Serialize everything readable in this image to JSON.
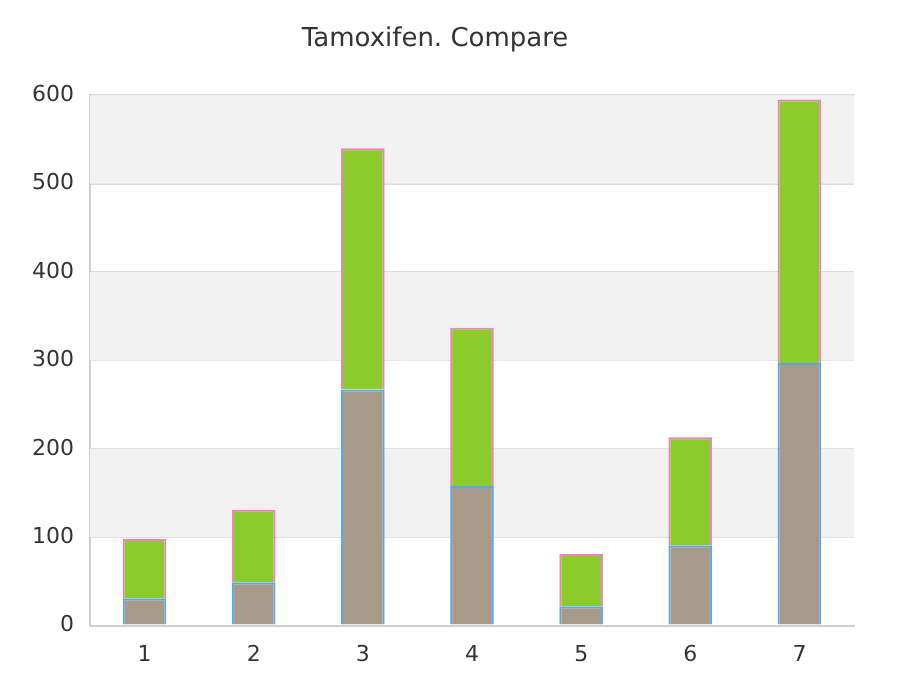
{
  "chart_data": {
    "type": "bar",
    "title": "Tamoxifen. Compare",
    "categories": [
      "1",
      "2",
      "3",
      "4",
      "5",
      "6",
      "7"
    ],
    "stacked": true,
    "series": [
      {
        "color": "#a89a88",
        "values": [
          31,
          49,
          267,
          158,
          22,
          91,
          297
        ]
      },
      {
        "color": "#8ccc2a",
        "values": [
          67,
          82,
          273,
          179,
          59,
          122,
          298
        ]
      }
    ],
    "ylim": [
      0,
      600
    ],
    "yticks": [
      0,
      100,
      200,
      300,
      400,
      500,
      600
    ],
    "grid": "y",
    "legend": false
  }
}
